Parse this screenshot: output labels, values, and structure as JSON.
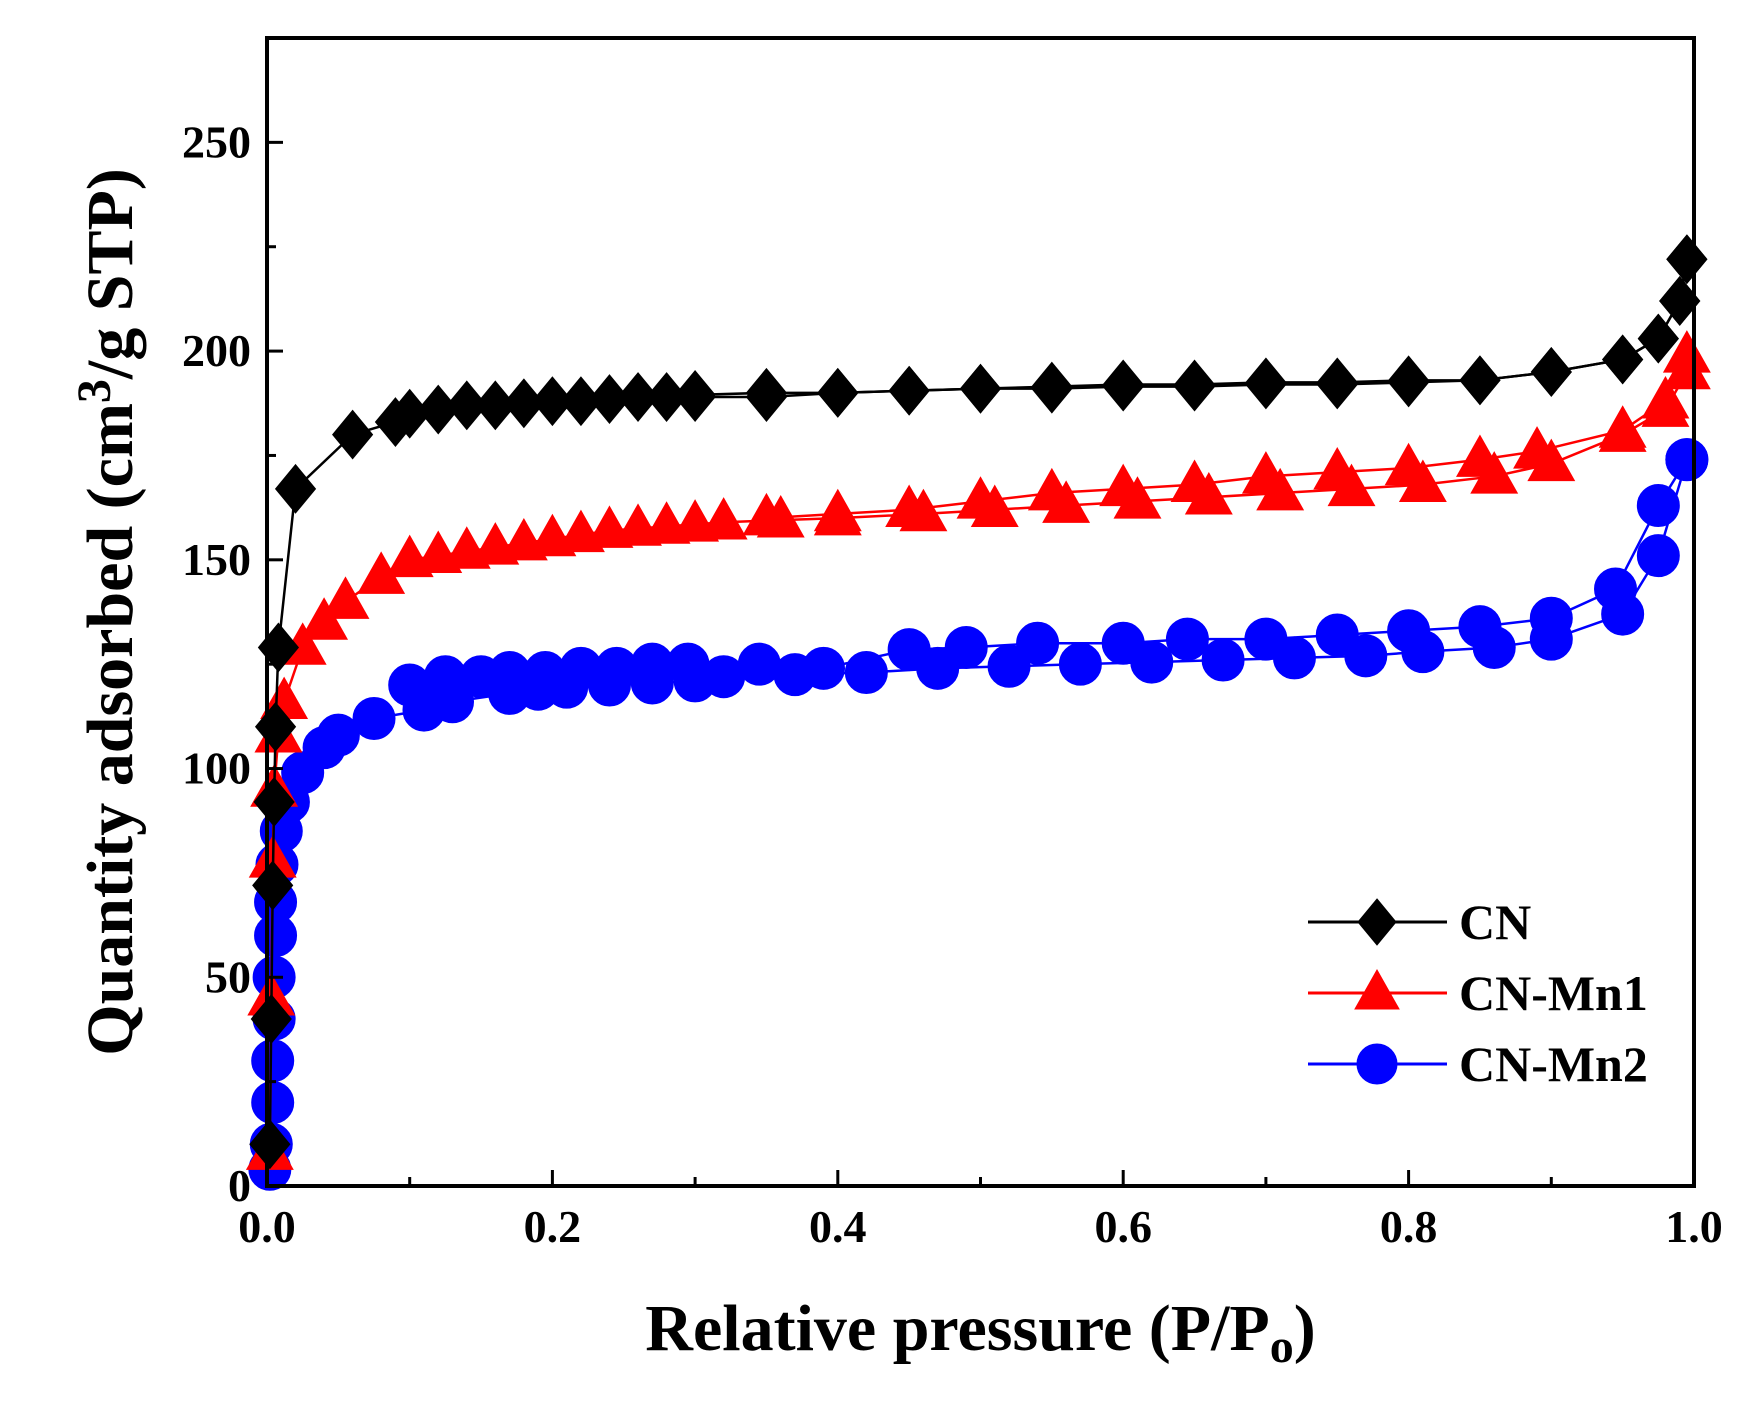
{
  "chart_data": {
    "type": "line",
    "xlabel": "Relative pressure (P/P",
    "xlabel_sub": "o",
    "xlabel_end": ")",
    "ylabel": "Quantity adsorbed (cm",
    "ylabel_sup": "3",
    "ylabel_end": "/g STP)",
    "xlim": [
      0.0,
      1.0
    ],
    "ylim": [
      0,
      275
    ],
    "x_ticks": [
      "0.0",
      "0.2",
      "0.4",
      "0.6",
      "0.8",
      "1.0"
    ],
    "y_ticks": [
      "0",
      "50",
      "100",
      "150",
      "200",
      "250"
    ],
    "legend_position": "bottom-right",
    "grid": false,
    "series": [
      {
        "name": "CN",
        "color": "#000000",
        "marker": "diamond",
        "adsorption": [
          [
            0.002,
            10
          ],
          [
            0.003,
            40
          ],
          [
            0.004,
            72
          ],
          [
            0.005,
            92
          ],
          [
            0.006,
            110
          ],
          [
            0.008,
            129
          ],
          [
            0.02,
            167
          ],
          [
            0.06,
            180
          ],
          [
            0.09,
            183
          ],
          [
            0.1,
            185
          ],
          [
            0.12,
            186
          ],
          [
            0.14,
            187
          ],
          [
            0.16,
            187
          ],
          [
            0.18,
            187.5
          ],
          [
            0.2,
            188
          ],
          [
            0.22,
            188
          ],
          [
            0.24,
            188.5
          ],
          [
            0.26,
            189
          ],
          [
            0.28,
            189
          ],
          [
            0.3,
            189.5
          ],
          [
            0.35,
            190
          ],
          [
            0.4,
            190
          ],
          [
            0.45,
            190.5
          ],
          [
            0.5,
            191
          ],
          [
            0.55,
            191
          ],
          [
            0.6,
            191.5
          ],
          [
            0.65,
            191.5
          ],
          [
            0.7,
            192
          ],
          [
            0.75,
            192
          ],
          [
            0.8,
            192.5
          ],
          [
            0.85,
            193
          ],
          [
            0.9,
            195
          ],
          [
            0.95,
            198
          ],
          [
            0.975,
            203
          ],
          [
            0.99,
            212
          ],
          [
            0.995,
            222
          ]
        ],
        "desorption": [
          [
            0.995,
            222
          ],
          [
            0.99,
            212
          ],
          [
            0.975,
            203
          ],
          [
            0.95,
            198
          ],
          [
            0.9,
            195
          ],
          [
            0.85,
            193
          ],
          [
            0.8,
            193
          ],
          [
            0.75,
            192.5
          ],
          [
            0.7,
            192.5
          ],
          [
            0.65,
            192
          ],
          [
            0.6,
            192
          ],
          [
            0.55,
            191.5
          ],
          [
            0.5,
            191
          ],
          [
            0.45,
            190.5
          ],
          [
            0.4,
            190
          ],
          [
            0.35,
            189
          ],
          [
            0.3,
            189
          ]
        ]
      },
      {
        "name": "CN-Mn1",
        "color": "#ff0000",
        "marker": "triangle",
        "adsorption": [
          [
            0.002,
            8
          ],
          [
            0.003,
            45
          ],
          [
            0.004,
            78
          ],
          [
            0.005,
            95
          ],
          [
            0.008,
            108
          ],
          [
            0.012,
            116
          ],
          [
            0.025,
            129
          ],
          [
            0.04,
            135
          ],
          [
            0.055,
            140
          ],
          [
            0.08,
            146
          ],
          [
            0.1,
            150
          ],
          [
            0.12,
            151
          ],
          [
            0.14,
            152
          ],
          [
            0.16,
            153
          ],
          [
            0.18,
            154
          ],
          [
            0.2,
            155
          ],
          [
            0.22,
            156
          ],
          [
            0.24,
            157
          ],
          [
            0.26,
            157.5
          ],
          [
            0.28,
            158
          ],
          [
            0.3,
            158.5
          ],
          [
            0.32,
            159
          ],
          [
            0.36,
            159.5
          ],
          [
            0.4,
            160
          ],
          [
            0.46,
            161
          ],
          [
            0.51,
            162
          ],
          [
            0.56,
            163
          ],
          [
            0.61,
            164
          ],
          [
            0.66,
            165
          ],
          [
            0.71,
            166
          ],
          [
            0.76,
            167
          ],
          [
            0.81,
            168
          ],
          [
            0.86,
            170
          ],
          [
            0.9,
            173
          ],
          [
            0.95,
            180
          ],
          [
            0.98,
            186
          ],
          [
            0.995,
            195
          ]
        ],
        "desorption": [
          [
            0.995,
            199
          ],
          [
            0.98,
            188
          ],
          [
            0.95,
            181
          ],
          [
            0.89,
            176
          ],
          [
            0.85,
            174
          ],
          [
            0.8,
            172
          ],
          [
            0.75,
            171
          ],
          [
            0.7,
            170
          ],
          [
            0.65,
            168
          ],
          [
            0.6,
            167
          ],
          [
            0.55,
            166
          ],
          [
            0.5,
            164
          ],
          [
            0.45,
            162
          ],
          [
            0.4,
            161
          ],
          [
            0.35,
            160
          ]
        ]
      },
      {
        "name": "CN-Mn2",
        "color": "#0000ff",
        "marker": "circle",
        "adsorption": [
          [
            0.002,
            4
          ],
          [
            0.003,
            10
          ],
          [
            0.004,
            20
          ],
          [
            0.004,
            30
          ],
          [
            0.005,
            40
          ],
          [
            0.005,
            50
          ],
          [
            0.006,
            60
          ],
          [
            0.006,
            68
          ],
          [
            0.007,
            77
          ],
          [
            0.01,
            85
          ],
          [
            0.015,
            92
          ],
          [
            0.025,
            99
          ],
          [
            0.04,
            105
          ],
          [
            0.05,
            108
          ],
          [
            0.075,
            112
          ],
          [
            0.11,
            114
          ],
          [
            0.13,
            116
          ],
          [
            0.17,
            118
          ],
          [
            0.19,
            119
          ],
          [
            0.21,
            119.5
          ],
          [
            0.24,
            120
          ],
          [
            0.27,
            120.5
          ],
          [
            0.3,
            121
          ],
          [
            0.32,
            122
          ],
          [
            0.37,
            122.5
          ],
          [
            0.42,
            123
          ],
          [
            0.47,
            124
          ],
          [
            0.52,
            124.5
          ],
          [
            0.57,
            125
          ],
          [
            0.62,
            125.5
          ],
          [
            0.67,
            126
          ],
          [
            0.72,
            126.5
          ],
          [
            0.77,
            127
          ],
          [
            0.81,
            128
          ],
          [
            0.86,
            129
          ],
          [
            0.9,
            131
          ],
          [
            0.95,
            137
          ],
          [
            0.975,
            151
          ],
          [
            0.995,
            174
          ]
        ],
        "desorption": [
          [
            0.995,
            174
          ],
          [
            0.975,
            163
          ],
          [
            0.945,
            143
          ],
          [
            0.9,
            136
          ],
          [
            0.85,
            134
          ],
          [
            0.8,
            133
          ],
          [
            0.75,
            132
          ],
          [
            0.7,
            131
          ],
          [
            0.645,
            131
          ],
          [
            0.6,
            130
          ],
          [
            0.54,
            130
          ],
          [
            0.49,
            129
          ],
          [
            0.45,
            128.5
          ],
          [
            0.39,
            124
          ],
          [
            0.345,
            125
          ],
          [
            0.295,
            125
          ],
          [
            0.27,
            125
          ],
          [
            0.245,
            124
          ],
          [
            0.22,
            124
          ],
          [
            0.195,
            123
          ],
          [
            0.17,
            123
          ],
          [
            0.15,
            122
          ],
          [
            0.125,
            122
          ],
          [
            0.1,
            120
          ]
        ]
      }
    ]
  }
}
